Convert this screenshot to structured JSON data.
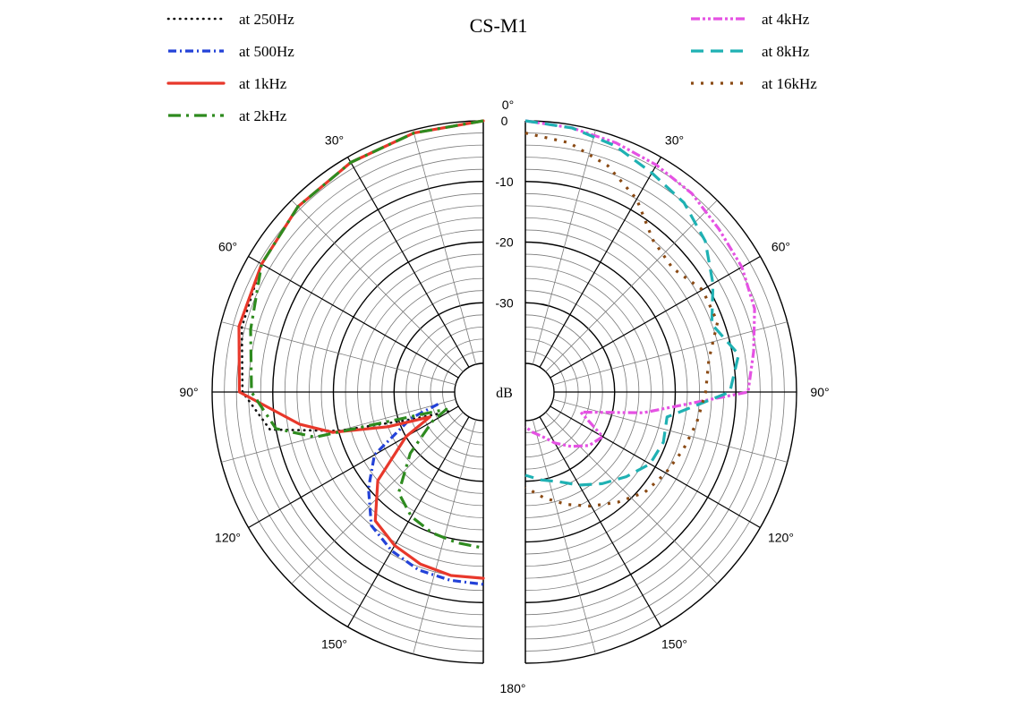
{
  "chart_data": {
    "type": "polar",
    "title": "CS-M1",
    "radial_unit": "dB",
    "r_ticks": [
      "0",
      "-10",
      "-20",
      "-30"
    ],
    "r_range": [
      -40,
      0
    ],
    "angle_ticks": [
      "0°",
      "30°",
      "60°",
      "90°",
      "120°",
      "150°",
      "180°"
    ],
    "grid": true,
    "series": [
      {
        "name": "at 250Hz",
        "color": "#111111",
        "style": "dotted-fine",
        "side": "left",
        "angles": [
          0,
          15,
          30,
          45,
          60,
          75,
          90,
          100,
          105,
          110,
          115,
          120
        ],
        "db": [
          0,
          -0.5,
          -1,
          -1.5,
          -2.5,
          -3.5,
          -5,
          -9,
          -20,
          -31,
          -36,
          -38.5
        ]
      },
      {
        "name": "at 500Hz",
        "color": "#2342d8",
        "style": "dashdot",
        "side": "left",
        "angles": [
          105,
          110,
          120,
          130,
          140,
          150,
          160,
          170,
          180
        ],
        "db": [
          -37,
          -32,
          -24,
          -20,
          -16,
          -14.5,
          -13.5,
          -13.2,
          -13
        ]
      },
      {
        "name": "at 1kHz",
        "color": "#e8382b",
        "style": "solid",
        "side": "left",
        "angles": [
          0,
          15,
          30,
          45,
          60,
          75,
          90,
          100,
          105,
          110,
          115,
          120,
          130,
          140,
          150,
          160,
          170,
          180
        ],
        "db": [
          0,
          -0.5,
          -1,
          -1.5,
          -2.5,
          -3,
          -4.5,
          -14,
          -19,
          -28,
          -35,
          -30,
          -22,
          -17,
          -15.5,
          -14.5,
          -14,
          -14
        ]
      },
      {
        "name": "at 2kHz",
        "color": "#2e8b1f",
        "style": "dashdot-long",
        "side": "left",
        "angles": [
          0,
          15,
          30,
          45,
          60,
          75,
          90,
          100,
          105,
          110,
          115,
          120,
          130,
          140,
          150,
          160,
          170,
          180
        ],
        "db": [
          0,
          -0.5,
          -1,
          -1.5,
          -2.5,
          -5,
          -6.5,
          -10,
          -16,
          -34,
          -38,
          -35,
          -29,
          -23,
          -21,
          -20,
          -19.5,
          -19
        ]
      },
      {
        "name": "at 4kHz",
        "color": "#e552e3",
        "style": "dashdot-dense",
        "side": "right",
        "angles": [
          0,
          10,
          20,
          30,
          40,
          50,
          60,
          70,
          80,
          90,
          100,
          110,
          120,
          130,
          140,
          150,
          160,
          170,
          180
        ],
        "db": [
          0,
          -0.5,
          -1,
          -1.5,
          -2,
          -3,
          -3.5,
          -4.5,
          -6.5,
          -8,
          -25,
          -35,
          -30,
          -31,
          -33,
          -35,
          -37,
          -38,
          -39
        ]
      },
      {
        "name": "at 8kHz",
        "color": "#1fb1b3",
        "style": "dashed",
        "side": "right",
        "angles": [
          0,
          10,
          20,
          30,
          40,
          50,
          60,
          70,
          80,
          90,
          100,
          110,
          120,
          130,
          140,
          150,
          160,
          170,
          180
        ],
        "db": [
          0,
          -0.5,
          -1.5,
          -3,
          -4,
          -6,
          -9,
          -12,
          -9,
          -11,
          -21,
          -20.5,
          -21,
          -23,
          -25,
          -27,
          -29,
          -30,
          -31
        ]
      },
      {
        "name": "at 16kHz",
        "color": "#8a4a14",
        "style": "dotted-square",
        "side": "right",
        "angles": [
          0,
          10,
          20,
          30,
          40,
          50,
          60,
          70,
          80,
          90,
          100,
          110,
          120,
          130,
          140,
          150,
          160,
          170,
          180
        ],
        "db": [
          -2,
          -3,
          -5,
          -8,
          -12,
          -13,
          -11,
          -11,
          -14,
          -15,
          -16,
          -17,
          -18,
          -19,
          -21,
          -23,
          -25,
          -27,
          -29
        ]
      }
    ]
  }
}
